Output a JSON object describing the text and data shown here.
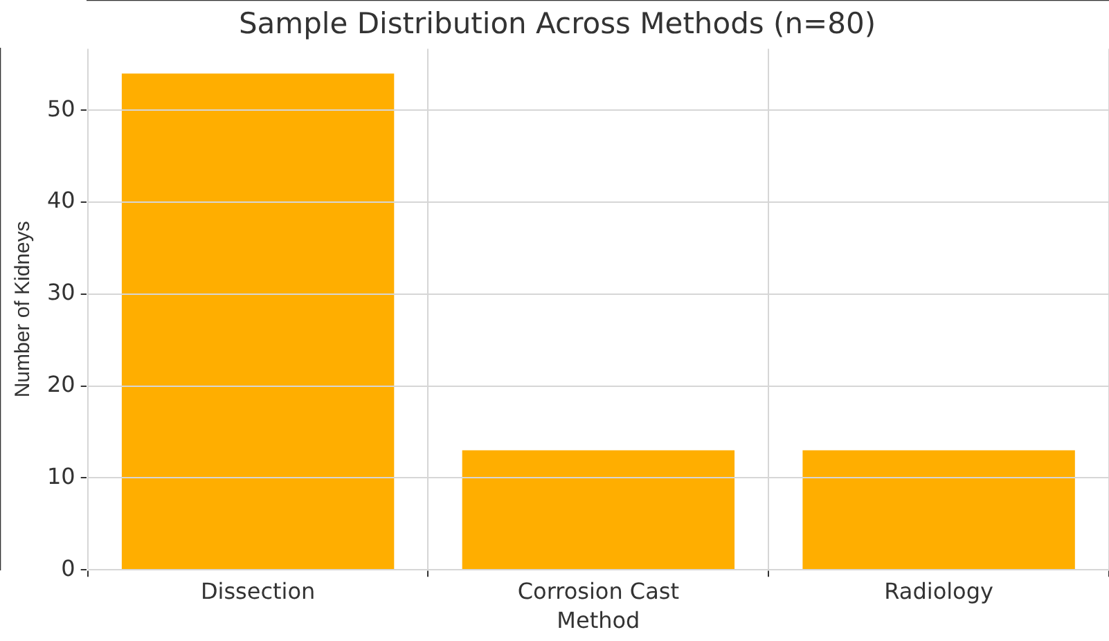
{
  "chart_data": {
    "type": "bar",
    "title": "Sample Distribution Across Methods (n=80)",
    "xlabel": "Method",
    "ylabel": "Number of Kidneys",
    "categories": [
      "Dissection",
      "Corrosion Cast",
      "Radiology"
    ],
    "values": [
      54,
      13,
      13
    ],
    "color": "#ffae00",
    "ylim": [
      0,
      56.7
    ],
    "yticks": [
      0,
      10,
      20,
      30,
      40,
      50
    ],
    "grid": true
  }
}
